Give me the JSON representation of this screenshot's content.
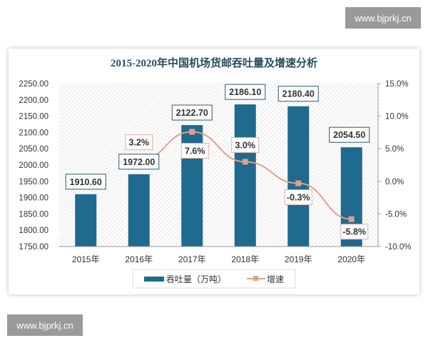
{
  "watermark": "www.bjprkj.cn",
  "chart_data": {
    "type": "bar+line",
    "title": "2015-2020年中国机场货邮吞吐量及增速分析",
    "categories": [
      "2015年",
      "2016年",
      "2017年",
      "2018年",
      "2019年",
      "2020年"
    ],
    "series": [
      {
        "name": "吞吐量（万吨）",
        "type": "bar",
        "axis": "left",
        "values": [
          1910.6,
          1972.0,
          2122.7,
          2186.1,
          2180.4,
          2054.5
        ],
        "labels": [
          "1910.60",
          "1972.00",
          "2122.70",
          "2186.10",
          "2180.40",
          "2054.50"
        ],
        "color": "#1f6a8e"
      },
      {
        "name": "增速",
        "type": "line",
        "axis": "right",
        "values": [
          null,
          3.2,
          7.6,
          3.0,
          -0.3,
          -5.8
        ],
        "labels": [
          "",
          "3.2%",
          "7.6%",
          "3.0%",
          "-0.3%",
          "-5.8%"
        ],
        "color": "#e0a08a"
      }
    ],
    "y_left": {
      "range": [
        1750,
        2250
      ],
      "ticks": [
        "1750.00",
        "1800.00",
        "1850.00",
        "1900.00",
        "1950.00",
        "2000.00",
        "2050.00",
        "2100.00",
        "2150.00",
        "2200.00",
        "2250.00"
      ]
    },
    "y_right": {
      "range": [
        -10,
        15
      ],
      "ticks": [
        "-10.0%",
        "-5.0%",
        "0.0%",
        "5.0%",
        "10.0%",
        "15.0%"
      ]
    },
    "legend": "bottom",
    "plot_background": "hatched"
  }
}
